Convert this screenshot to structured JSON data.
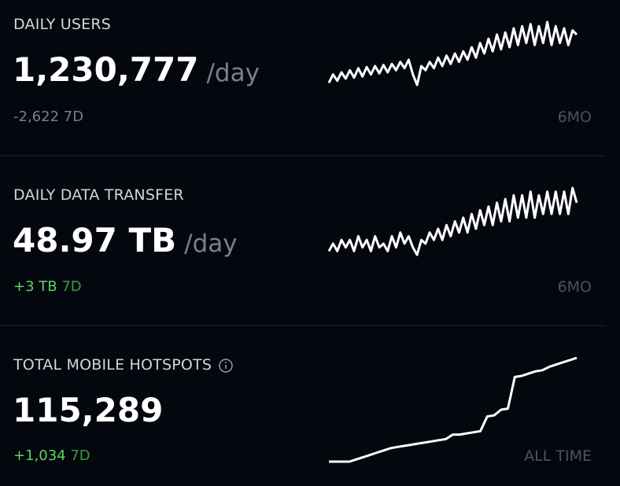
{
  "cards": [
    {
      "title": "DAILY USERS",
      "value": "1,230,777",
      "unit": "/day",
      "change": "-2,622",
      "change_period": "7D",
      "range": "6MO",
      "trend": "down",
      "sparkline": [
        1000,
        1040,
        1010,
        1050,
        1020,
        1060,
        1025,
        1070,
        1030,
        1075,
        1040,
        1080,
        1045,
        1085,
        1050,
        1090,
        1060,
        1100,
        1070,
        1110,
        1040,
        990,
        1080,
        1060,
        1100,
        1070,
        1120,
        1080,
        1130,
        1090,
        1140,
        1100,
        1150,
        1110,
        1170,
        1120,
        1190,
        1140,
        1210,
        1150,
        1230,
        1160,
        1240,
        1170,
        1260,
        1180,
        1270,
        1190,
        1280,
        1180,
        1270,
        1190,
        1290,
        1180,
        1270,
        1190,
        1260,
        1180,
        1250,
        1230
      ]
    },
    {
      "title": "DAILY DATA TRANSFER",
      "value": "48.97 TB",
      "unit": "/day",
      "change": "+3 TB",
      "change_period": "7D",
      "range": "6MO",
      "trend": "up",
      "sparkline": [
        40,
        42,
        40,
        43,
        41,
        43,
        40,
        44,
        41,
        43,
        40,
        44,
        41,
        42,
        40,
        44,
        41,
        45,
        42,
        44,
        41,
        39,
        43,
        42,
        45,
        43,
        46,
        43,
        47,
        44,
        48,
        45,
        49,
        45,
        50,
        46,
        51,
        47,
        52,
        47,
        53,
        48,
        54,
        48,
        55,
        49,
        55,
        49,
        56,
        49,
        55,
        50,
        56,
        50,
        56,
        50,
        56,
        50,
        57,
        53
      ]
    },
    {
      "title": "TOTAL MOBILE HOTSPOTS",
      "value": "115,289",
      "change": "+1,034",
      "change_period": "7D",
      "range": "ALL TIME",
      "trend": "up",
      "sparkline": [
        0,
        0,
        0,
        0,
        2,
        4,
        6,
        8,
        10,
        12,
        13,
        14,
        15,
        16,
        17,
        18,
        19,
        20,
        24,
        24,
        25,
        26,
        27,
        40,
        41,
        46,
        47,
        75,
        76,
        78,
        80,
        81,
        84,
        86,
        88,
        90,
        92
      ]
    }
  ]
}
